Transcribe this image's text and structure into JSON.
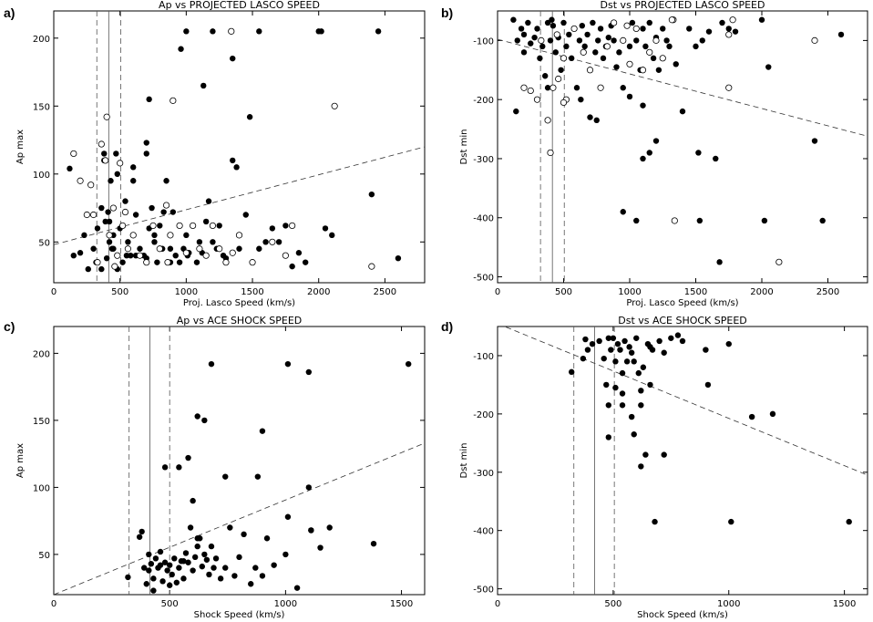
{
  "chart_data": [
    {
      "letter": "a)",
      "type": "scatter",
      "title": "Ap vs PROJECTED LASCO SPEED",
      "xlabel": "Proj. Lasco Speed (km/s)",
      "ylabel": "Ap max",
      "xlim": [
        0,
        2800
      ],
      "ylim": [
        20,
        220
      ],
      "xticks": [
        0,
        500,
        1000,
        1500,
        2000,
        2500
      ],
      "yticks": [
        50,
        100,
        150,
        200
      ],
      "reference_lines": [
        {
          "x": 415,
          "style": "solid"
        },
        {
          "x": 325,
          "style": "dashed"
        },
        {
          "x": 505,
          "style": "dashed"
        }
      ],
      "trend": [
        [
          0,
          48
        ],
        [
          2800,
          120
        ]
      ],
      "series": [
        {
          "marker": "filled",
          "x": [
            120,
            150,
            200,
            230,
            260,
            300,
            330,
            360,
            380,
            390,
            400,
            410,
            420,
            430,
            450,
            470,
            480,
            500,
            520,
            540,
            560,
            580,
            600,
            620,
            650,
            680,
            700,
            720,
            740,
            760,
            780,
            800,
            820,
            850,
            880,
            900,
            920,
            950,
            980,
            1000,
            1020,
            1050,
            1080,
            1100,
            1120,
            1150,
            1170,
            1200,
            1230,
            1250,
            1280,
            1300,
            1350,
            1380,
            1400,
            1450,
            1480,
            1500,
            1550,
            1600,
            1650,
            1700,
            1750,
            1800,
            1850,
            1900,
            2000,
            2050,
            2100,
            2400,
            2600,
            380,
            420,
            450,
            600,
            700,
            1200,
            1350,
            1550,
            2020,
            2450,
            720,
            1000,
            1130,
            1340,
            960,
            830,
            700,
            760,
            320,
            360,
            550,
            620,
            480,
            440,
            880,
            1010
          ],
          "y": [
            104,
            40,
            42,
            55,
            30,
            45,
            60,
            75,
            110,
            65,
            38,
            72,
            50,
            95,
            45,
            115,
            100,
            60,
            35,
            80,
            50,
            40,
            105,
            70,
            45,
            40,
            115,
            60,
            75,
            50,
            35,
            62,
            45,
            95,
            45,
            72,
            40,
            35,
            45,
            55,
            42,
            62,
            35,
            50,
            42,
            65,
            80,
            50,
            45,
            62,
            40,
            38,
            110,
            105,
            45,
            70,
            142,
            35,
            45,
            50,
            60,
            50,
            62,
            32,
            42,
            35,
            205,
            60,
            55,
            85,
            38,
            115,
            65,
            55,
            95,
            38,
            205,
            185,
            205,
            205,
            205,
            155,
            205,
            165,
            205,
            192,
            72,
            123,
            55,
            35,
            30,
            40,
            40,
            30,
            45,
            35,
            40
          ]
        },
        {
          "marker": "open",
          "x": [
            150,
            200,
            250,
            280,
            300,
            330,
            360,
            390,
            400,
            420,
            450,
            480,
            500,
            520,
            540,
            600,
            650,
            700,
            750,
            800,
            850,
            880,
            900,
            950,
            1000,
            1050,
            1100,
            1150,
            1200,
            1250,
            1300,
            1350,
            1400,
            1500,
            1650,
            1750,
            1800,
            2120,
            2400,
            1340,
            860,
            460,
            560
          ],
          "y": [
            115,
            95,
            70,
            92,
            70,
            35,
            122,
            110,
            142,
            55,
            75,
            40,
            108,
            62,
            72,
            55,
            40,
            35,
            62,
            45,
            77,
            55,
            154,
            62,
            42,
            62,
            45,
            40,
            62,
            45,
            35,
            42,
            55,
            35,
            50,
            40,
            62,
            150,
            32,
            205,
            35,
            32,
            45
          ]
        }
      ]
    },
    {
      "letter": "b)",
      "type": "scatter",
      "title": "Dst vs PROJECTED LASCO SPEED",
      "xlabel": "Proj. Lasco Speed (km/s)",
      "ylabel": "Dst min",
      "xlim": [
        0,
        2800
      ],
      "ylim": [
        -510,
        -50
      ],
      "xticks": [
        0,
        500,
        1000,
        1500,
        2000,
        2500
      ],
      "yticks": [
        -500,
        -400,
        -300,
        -200,
        -100
      ],
      "reference_lines": [
        {
          "x": 415,
          "style": "solid"
        },
        {
          "x": 325,
          "style": "dashed"
        },
        {
          "x": 505,
          "style": "dashed"
        }
      ],
      "trend": [
        [
          0,
          -98
        ],
        [
          2800,
          -262
        ]
      ],
      "series": [
        {
          "marker": "filled",
          "x": [
            120,
            150,
            180,
            200,
            230,
            250,
            280,
            300,
            320,
            340,
            360,
            380,
            400,
            420,
            440,
            460,
            480,
            500,
            520,
            540,
            560,
            580,
            600,
            620,
            640,
            660,
            680,
            700,
            720,
            740,
            760,
            780,
            800,
            820,
            840,
            860,
            880,
            900,
            920,
            950,
            980,
            1000,
            1020,
            1050,
            1080,
            1100,
            1120,
            1150,
            1180,
            1200,
            1220,
            1250,
            1280,
            1300,
            1350,
            1400,
            1450,
            1500,
            1550,
            1600,
            1700,
            1750,
            1800,
            2000,
            2050,
            2400,
            2600,
            700,
            750,
            950,
            1050,
            1100,
            1150,
            1200,
            1520,
            1530,
            1650,
            1680,
            2020,
            2460,
            1000,
            1100,
            140,
            380,
            410,
            630,
            200
          ],
          "y": [
            -65,
            -100,
            -80,
            -120,
            -70,
            -105,
            -95,
            -80,
            -130,
            -110,
            -160,
            -180,
            -100,
            -75,
            -120,
            -95,
            -150,
            -70,
            -110,
            -90,
            -130,
            -80,
            -180,
            -100,
            -75,
            -110,
            -90,
            -150,
            -70,
            -120,
            -100,
            -80,
            -130,
            -110,
            -95,
            -75,
            -100,
            -145,
            -120,
            -180,
            -75,
            -110,
            -70,
            -100,
            -150,
            -80,
            -110,
            -70,
            -130,
            -95,
            -150,
            -80,
            -100,
            -110,
            -140,
            -220,
            -80,
            -110,
            -100,
            -85,
            -70,
            -80,
            -85,
            -65,
            -145,
            -270,
            -90,
            -230,
            -235,
            -390,
            -405,
            -300,
            -290,
            -270,
            -290,
            -405,
            -300,
            -475,
            -405,
            -405,
            -195,
            -210,
            -220,
            -70,
            -65,
            -200,
            -90
          ]
        },
        {
          "marker": "open",
          "x": [
            200,
            250,
            300,
            330,
            380,
            400,
            420,
            450,
            500,
            520,
            580,
            650,
            700,
            780,
            830,
            880,
            950,
            1000,
            1050,
            1100,
            1150,
            1200,
            1250,
            1330,
            1750,
            2400,
            2130,
            1780,
            980,
            1340,
            1320,
            1750,
            460,
            500
          ],
          "y": [
            -180,
            -185,
            -200,
            -100,
            -235,
            -290,
            -180,
            -90,
            -130,
            -200,
            -80,
            -120,
            -150,
            -180,
            -110,
            -70,
            -100,
            -140,
            -80,
            -150,
            -120,
            -100,
            -130,
            -65,
            -90,
            -100,
            -475,
            -65,
            -75,
            -405,
            -65,
            -180,
            -165,
            -205
          ]
        }
      ]
    },
    {
      "letter": "c)",
      "type": "scatter",
      "title": "Ap vs ACE SHOCK SPEED",
      "xlabel": "Shock Speed (km/s)",
      "ylabel": "Ap max",
      "xlim": [
        0,
        1600
      ],
      "ylim": [
        20,
        220
      ],
      "xticks": [
        0,
        500,
        1000,
        1500
      ],
      "yticks": [
        50,
        100,
        150,
        200
      ],
      "reference_lines": [
        {
          "x": 415,
          "style": "solid"
        },
        {
          "x": 325,
          "style": "dashed"
        },
        {
          "x": 500,
          "style": "dashed"
        }
      ],
      "trend": [
        [
          0,
          20
        ],
        [
          1600,
          133
        ]
      ],
      "series": [
        {
          "marker": "filled",
          "x": [
            320,
            370,
            380,
            390,
            400,
            410,
            420,
            430,
            440,
            450,
            460,
            470,
            480,
            490,
            500,
            510,
            520,
            530,
            540,
            550,
            560,
            570,
            580,
            590,
            600,
            610,
            620,
            630,
            640,
            650,
            660,
            670,
            680,
            690,
            700,
            720,
            740,
            760,
            780,
            800,
            820,
            850,
            870,
            880,
            900,
            920,
            950,
            1000,
            1010,
            1050,
            1100,
            1110,
            1150,
            1190,
            1380,
            680,
            1010,
            1100,
            1530,
            620,
            580,
            650,
            900,
            740,
            480,
            540,
            600,
            620,
            1110,
            410,
            430,
            460,
            500,
            560
          ],
          "y": [
            33,
            63,
            67,
            40,
            28,
            50,
            43,
            32,
            47,
            40,
            52,
            30,
            44,
            38,
            42,
            35,
            47,
            29,
            40,
            45,
            32,
            51,
            44,
            70,
            38,
            48,
            56,
            62,
            41,
            50,
            46,
            35,
            56,
            40,
            47,
            32,
            40,
            70,
            34,
            48,
            65,
            28,
            40,
            108,
            34,
            62,
            42,
            50,
            78,
            25,
            100,
            68,
            55,
            70,
            58,
            192,
            192,
            186,
            192,
            153,
            122,
            150,
            142,
            108,
            115,
            115,
            90,
            62,
            68,
            38,
            23,
            42,
            27,
            45
          ]
        }
      ]
    },
    {
      "letter": "d)",
      "type": "scatter",
      "title": "Dst vs ACE SHOCK SPEED",
      "xlabel": "Shock Speed (km/s)",
      "ylabel": "Dst min",
      "xlim": [
        0,
        1600
      ],
      "ylim": [
        -510,
        -50
      ],
      "xticks": [
        0,
        500,
        1000,
        1500
      ],
      "yticks": [
        -500,
        -400,
        -300,
        -200,
        -100
      ],
      "reference_lines": [
        {
          "x": 420,
          "style": "solid"
        },
        {
          "x": 330,
          "style": "dashed"
        },
        {
          "x": 505,
          "style": "dashed"
        }
      ],
      "trend": [
        [
          0,
          -45
        ],
        [
          1600,
          -305
        ]
      ],
      "series": [
        {
          "marker": "filled",
          "x": [
            320,
            370,
            380,
            390,
            410,
            440,
            460,
            470,
            480,
            490,
            500,
            510,
            520,
            530,
            540,
            550,
            560,
            570,
            580,
            590,
            600,
            610,
            620,
            630,
            640,
            650,
            660,
            670,
            680,
            700,
            720,
            750,
            780,
            800,
            900,
            910,
            1000,
            1010,
            1100,
            1190,
            1520,
            480,
            540,
            580,
            620,
            660,
            720,
            480,
            510,
            540,
            590,
            620
          ],
          "y": [
            -128,
            -105,
            -72,
            -90,
            -80,
            -75,
            -105,
            -150,
            -70,
            -90,
            -70,
            -110,
            -80,
            -90,
            -130,
            -75,
            -110,
            -85,
            -95,
            -110,
            -70,
            -130,
            -160,
            -120,
            -270,
            -80,
            -85,
            -90,
            -385,
            -75,
            -270,
            -70,
            -65,
            -75,
            -90,
            -150,
            -80,
            -385,
            -205,
            -200,
            -385,
            -185,
            -185,
            -205,
            -185,
            -150,
            -95,
            -240,
            -155,
            -165,
            -235,
            -290
          ]
        }
      ]
    }
  ]
}
